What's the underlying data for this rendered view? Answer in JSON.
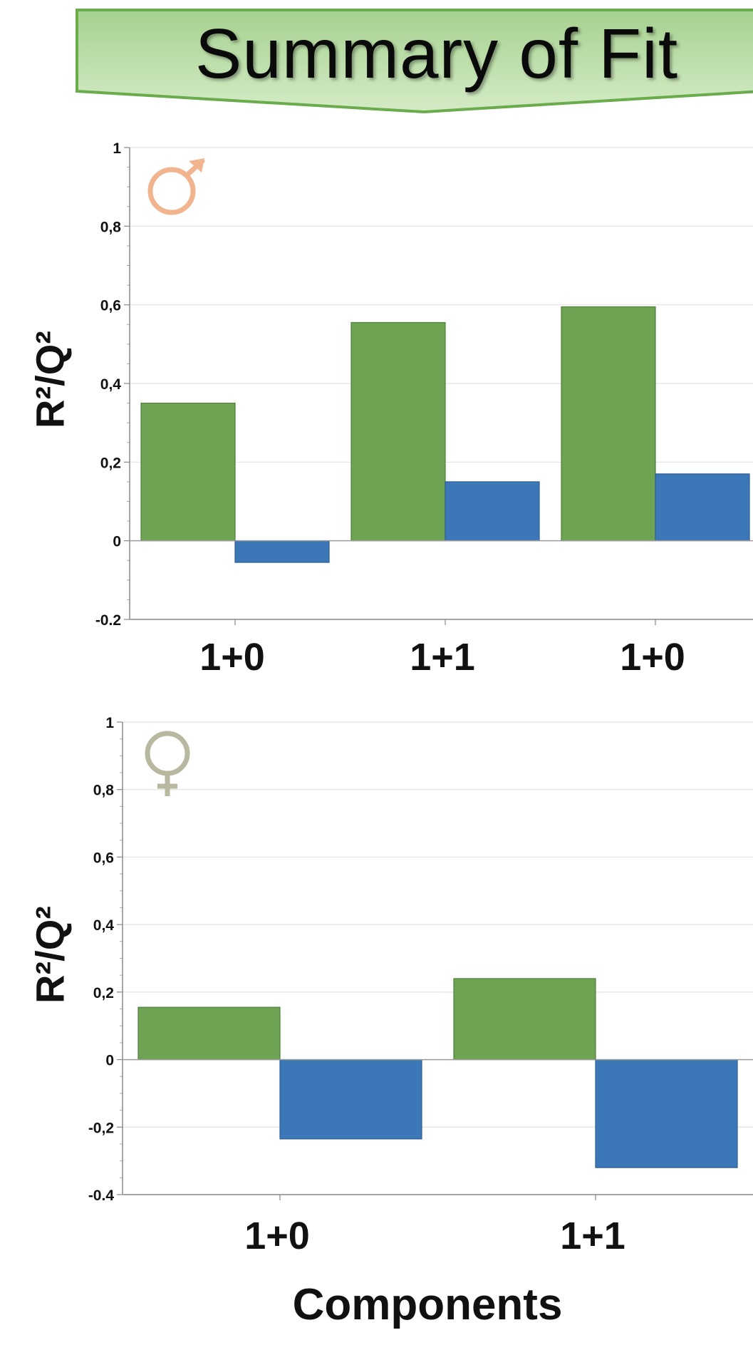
{
  "title": "Summary of Fit",
  "ylabel": "R²/Q²",
  "xlabel": "Components",
  "colors": {
    "r2": "#6ea354",
    "q2": "#3c78b8",
    "banner_top": "#a9d393",
    "banner_bottom": "#cfe8c0",
    "banner_edge": "#6aab4c",
    "male_symbol": "#f2b48e",
    "female_symbol": "#b8b8a0"
  },
  "icons": {
    "male": "male-symbol-icon",
    "female": "female-symbol-icon"
  },
  "chart_data": [
    {
      "type": "bar",
      "panel": "male",
      "categories": [
        "1+0",
        "1+1",
        "1+0"
      ],
      "series": [
        {
          "values": [
            0.35,
            0.555,
            0.595
          ]
        },
        {
          "values": [
            -0.055,
            0.15,
            0.17
          ]
        }
      ],
      "ylim": [
        -0.2,
        1
      ],
      "yticks": [
        1,
        0.8,
        0.6,
        0.4,
        0.2,
        0,
        -0.2
      ],
      "ytick_labels": [
        "1",
        "0,8",
        "0,6",
        "0,4",
        "0,2",
        "0",
        "-0.2"
      ],
      "grid": true
    },
    {
      "type": "bar",
      "panel": "female",
      "categories": [
        "1+0",
        "1+1"
      ],
      "series": [
        {
          "values": [
            0.155,
            0.24
          ]
        },
        {
          "values": [
            -0.235,
            -0.32
          ]
        }
      ],
      "ylim": [
        -0.4,
        1
      ],
      "yticks": [
        1,
        0.8,
        0.6,
        0.4,
        0.2,
        0,
        -0.2,
        -0.4
      ],
      "ytick_labels": [
        "1",
        "0,8",
        "0,6",
        "0,4",
        "0,2",
        "0",
        "-0,2",
        "-0.4"
      ],
      "grid": true
    }
  ]
}
